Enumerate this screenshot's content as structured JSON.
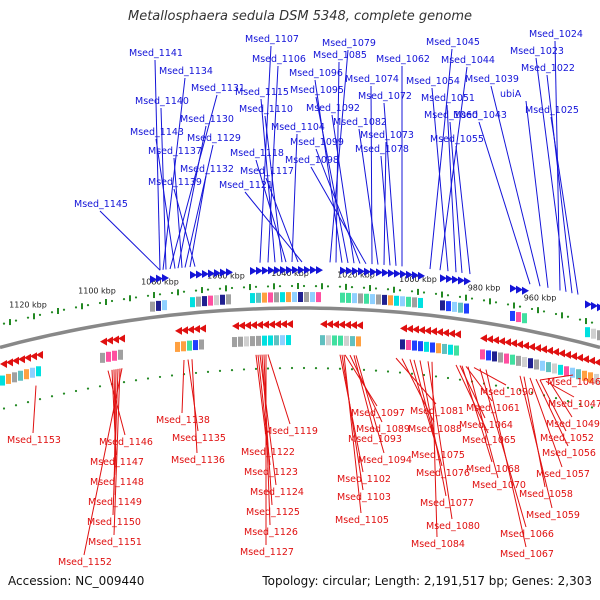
{
  "title": "Metallosphaera sedula DSM 5348, complete genome",
  "accession": "Accession: NC_009440",
  "summary": "Topology: circular; Length: 2,191,517 bp; Genes: 2,303",
  "colors": {
    "forward": "#1414d8",
    "reverse": "#e01010",
    "backbone": "#888888",
    "ticks": "#228822"
  },
  "scale_ticks": [
    "1120 kbp",
    "1100 kbp",
    "1080 kbp",
    "1060 kbp",
    "1040 kbp",
    "1020 kbp",
    "1000 kbp",
    "980 kbp",
    "960 kbp"
  ],
  "forward_genes": [
    "Msed_1145",
    "Msed_1141",
    "Msed_1134",
    "Msed_1140",
    "Msed_1131",
    "Msed_1143",
    "Msed_1130",
    "Msed_1137",
    "Msed_1129",
    "Msed_1132",
    "Msed_1139",
    "Msed_1107",
    "Msed_1106",
    "Msed_1115",
    "Msed_1110",
    "Msed_1118",
    "Msed_1104",
    "Msed_1117",
    "Msed_1121",
    "Msed_1079",
    "Msed_1085",
    "Msed_1096",
    "Msed_1095",
    "Msed_1092",
    "Msed_1099",
    "Msed_1098",
    "Msed_1074",
    "Msed_1082",
    "Msed_1073",
    "Msed_1078",
    "Msed_1072",
    "Msed_1062",
    "Msed_1045",
    "Msed_1044",
    "Msed_1054",
    "Msed_1051",
    "Msed_1060",
    "Msed_1055",
    "Msed_1024",
    "Msed_1023",
    "Msed_1022",
    "Msed_1039",
    "ubiA",
    "Msed_1043",
    "Msed_1025"
  ],
  "reverse_genes": [
    "Msed_1153",
    "Msed_1146",
    "Msed_1147",
    "Msed_1148",
    "Msed_1149",
    "Msed_1150",
    "Msed_1151",
    "Msed_1152",
    "Msed_1138",
    "Msed_1135",
    "Msed_1136",
    "Msed_1119",
    "Msed_1122",
    "Msed_1123",
    "Msed_1124",
    "Msed_1125",
    "Msed_1126",
    "Msed_1127",
    "Msed_1097",
    "Msed_1089",
    "Msed_1093",
    "Msed_1094",
    "Msed_1102",
    "Msed_1103",
    "Msed_1105",
    "Msed_1081",
    "Msed_1088",
    "Msed_1075",
    "Msed_1076",
    "Msed_1077",
    "Msed_1080",
    "Msed_1084",
    "Msed_1090",
    "Msed_1061",
    "Msed_1064",
    "Msed_1065",
    "Msed_1068",
    "Msed_1070",
    "Msed_1066",
    "Msed_1067",
    "Msed_1046",
    "Msed_1047",
    "Msed_1049",
    "Msed_1052",
    "Msed_1056",
    "Msed_1057",
    "Msed_1058",
    "Msed_1059"
  ]
}
